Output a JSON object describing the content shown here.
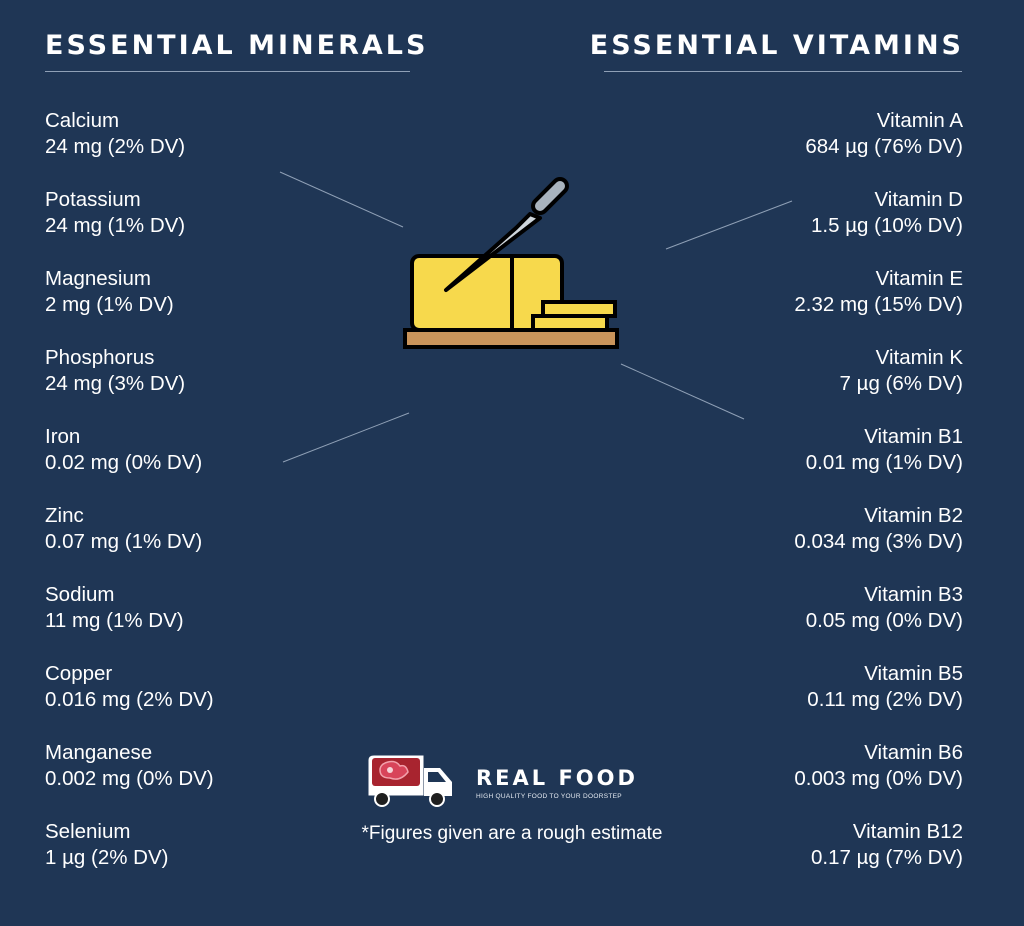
{
  "minerals": {
    "title": "ESSENTIAL MINERALS",
    "items": [
      {
        "name": "Calcium",
        "value": "24 mg (2% DV)"
      },
      {
        "name": "Potassium",
        "value": "24 mg (1% DV)"
      },
      {
        "name": "Magnesium",
        "value": "2 mg (1% DV)"
      },
      {
        "name": "Phosphorus",
        "value": "24 mg (3% DV)"
      },
      {
        "name": "Iron",
        "value": "0.02 mg (0% DV)"
      },
      {
        "name": "Zinc",
        "value": "0.07 mg (1% DV)"
      },
      {
        "name": "Sodium",
        "value": "11 mg (1% DV)"
      },
      {
        "name": "Copper",
        "value": "0.016 mg (2% DV)"
      },
      {
        "name": "Manganese",
        "value": "0.002 mg (0% DV)"
      },
      {
        "name": "Selenium",
        "value": "1 µg (2% DV)"
      }
    ]
  },
  "vitamins": {
    "title": "ESSENTIAL VITAMINS",
    "items": [
      {
        "name": "Vitamin A",
        "value": "684 µg (76% DV)"
      },
      {
        "name": "Vitamin D",
        "value": "1.5 µg (10% DV)"
      },
      {
        "name": "Vitamin E",
        "value": "2.32 mg (15% DV)"
      },
      {
        "name": "Vitamin K",
        "value": "7 µg (6% DV)"
      },
      {
        "name": "Vitamin B1",
        "value": "0.01 mg (1% DV)"
      },
      {
        "name": "Vitamin B2",
        "value": "0.034 mg (3% DV)"
      },
      {
        "name": "Vitamin B3",
        "value": "0.05 mg (0% DV)"
      },
      {
        "name": "Vitamin B5",
        "value": "0.11 mg (2% DV)"
      },
      {
        "name": "Vitamin B6",
        "value": "0.003 mg (0% DV)"
      },
      {
        "name": "Vitamin B12",
        "value": "0.17 µg (7% DV)"
      }
    ]
  },
  "brand": {
    "name": "REAL FOOD",
    "tagline": "HIGH QUALITY FOOD TO YOUR DOORSTEP"
  },
  "footnote": "*Figures given are a rough estimate",
  "icons": {
    "illustration": "butter-knife-icon",
    "brand_logo": "delivery-truck-icon"
  },
  "colors": {
    "background": "#1f3655",
    "text": "#ffffff",
    "divider": "#8fa0b6",
    "butter": "#f7d94c",
    "board": "#c9945b",
    "meat": "#a8242f"
  }
}
